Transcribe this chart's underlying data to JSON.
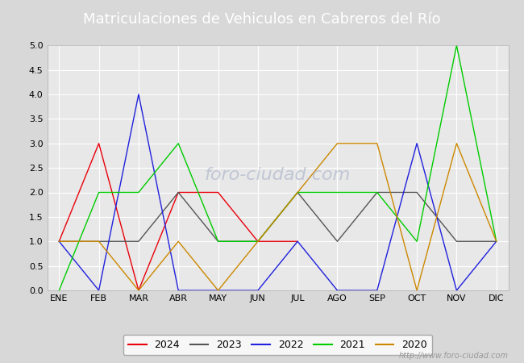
{
  "title": "Matriculaciones de Vehiculos en Cabreros del Río",
  "title_color": "#ffffff",
  "title_bg_color": "#4169b0",
  "months": [
    "ENE",
    "FEB",
    "MAR",
    "ABR",
    "MAY",
    "JUN",
    "JUL",
    "AGO",
    "SEP",
    "OCT",
    "NOV",
    "DIC"
  ],
  "series": [
    {
      "label": "2024",
      "color": "#e8000a",
      "data": [
        1,
        3,
        0,
        2,
        2,
        1,
        1,
        null,
        null,
        null,
        null,
        null
      ]
    },
    {
      "label": "2023",
      "color": "#555555",
      "data": [
        1,
        1,
        1,
        2,
        1,
        1,
        2,
        1,
        2,
        2,
        1,
        1
      ]
    },
    {
      "label": "2022",
      "color": "#2020dd",
      "data": [
        1,
        0,
        4,
        0,
        0,
        0,
        1,
        0,
        0,
        3,
        0,
        1
      ]
    },
    {
      "label": "2021",
      "color": "#00cc00",
      "data": [
        0,
        2,
        2,
        3,
        1,
        1,
        2,
        2,
        2,
        1,
        5,
        1
      ]
    },
    {
      "label": "2020",
      "color": "#cc8800",
      "data": [
        1,
        1,
        0,
        1,
        0,
        1,
        2,
        3,
        3,
        0,
        3,
        1
      ]
    }
  ],
  "ylim": [
    0,
    5.0
  ],
  "yticks": [
    0.0,
    0.5,
    1.0,
    1.5,
    2.0,
    2.5,
    3.0,
    3.5,
    4.0,
    4.5,
    5.0
  ],
  "outer_bg_color": "#d8d8d8",
  "plot_bg_color": "#e8e8e8",
  "grid_color": "#ffffff",
  "watermark_plot": "foro-ciudad.com",
  "watermark_url": "http://www.foro-ciudad.com",
  "watermark_color": "#b0b8cc",
  "footer_url_color": "#999999",
  "title_fontsize": 13,
  "tick_fontsize": 8,
  "legend_fontsize": 9
}
